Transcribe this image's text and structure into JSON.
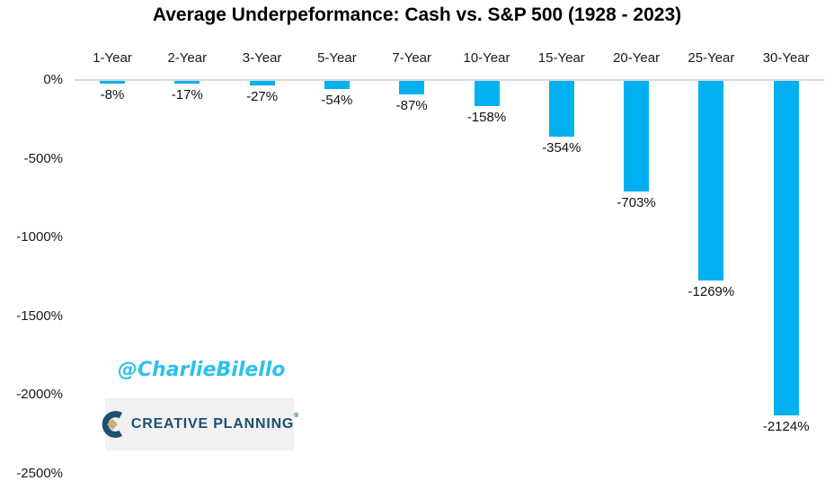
{
  "chart_data": {
    "type": "bar",
    "title": "Average Underpeformance: Cash vs. S&P 500 (1928 - 2023)",
    "categories": [
      "1-Year",
      "2-Year",
      "3-Year",
      "5-Year",
      "7-Year",
      "10-Year",
      "15-Year",
      "20-Year",
      "25-Year",
      "30-Year"
    ],
    "values": [
      -8,
      -17,
      -27,
      -54,
      -87,
      -158,
      -354,
      -703,
      -1269,
      -2124
    ],
    "value_labels": [
      "-8%",
      "-17%",
      "-27%",
      "-54%",
      "-87%",
      "-158%",
      "-354%",
      "-703%",
      "-1269%",
      "-2124%"
    ],
    "xlabel": "",
    "ylabel": "",
    "ylim": [
      -2500,
      0
    ],
    "yticks": [
      0,
      -500,
      -1000,
      -1500,
      -2000,
      -2500
    ],
    "ytick_labels": [
      "0%",
      "-500%",
      "-1000%",
      "-1500%",
      "-2000%",
      "-2500%"
    ],
    "grid": false,
    "legend": "none",
    "bar_color": "#00b0f0",
    "axis_line_color": "#d9d9d9"
  },
  "watermark": {
    "handle": "@CharlieBilello",
    "color": "#2cc0f1"
  },
  "logo": {
    "text": "CREATIVE PLANNING",
    "reg_mark": "®",
    "navy": "#1d4f6e",
    "gold": "#c8ae7d",
    "background": "#f1f1f2"
  }
}
